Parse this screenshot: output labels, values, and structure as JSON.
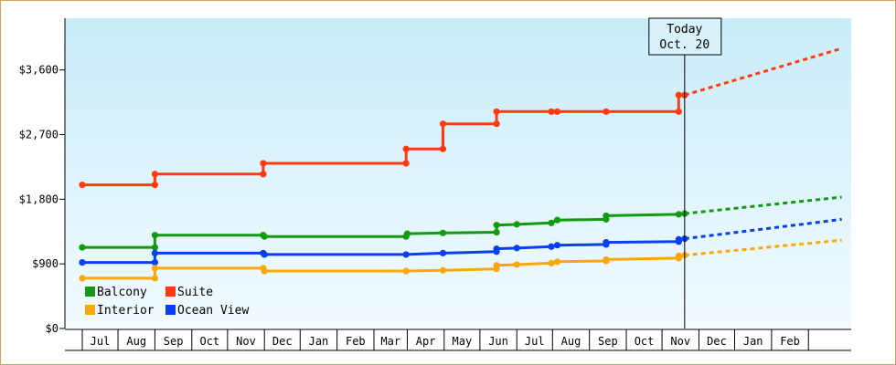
{
  "chart_data": {
    "type": "line",
    "y_axis": {
      "min": 0,
      "max": 4320,
      "ticks": [
        0,
        900,
        1800,
        2700,
        3600
      ],
      "tick_labels": [
        "$0",
        "$900",
        "$1,800",
        "$2,700",
        "$3,600"
      ]
    },
    "x_axis": {
      "months": [
        "Jul",
        "Aug",
        "Sep",
        "Oct",
        "Nov",
        "Dec",
        "Jan",
        "Feb",
        "Mar",
        "Apr",
        "May",
        "Jun",
        "Jul",
        "Aug",
        "Sep",
        "Oct",
        "Nov",
        "Dec",
        "Jan",
        "Feb"
      ],
      "start": "2014-06-01",
      "end": "2016-03-01"
    },
    "today": {
      "date": "2015-10-20",
      "label_line1": "Today",
      "label_line2": "Oct. 20"
    },
    "background": {
      "top": "#c9ecf9",
      "bottom": "#f2fbfe"
    },
    "legend": {
      "position": "bottom-left"
    },
    "series": [
      {
        "name": "Suite",
        "color": "#ff3a10",
        "points": [
          [
            "2014-06-01",
            2000
          ],
          [
            "2014-08-01",
            2000
          ],
          [
            "2014-08-01",
            2150
          ],
          [
            "2014-10-31",
            2150
          ],
          [
            "2014-10-31",
            2300
          ],
          [
            "2015-02-28",
            2300
          ],
          [
            "2015-02-28",
            2500
          ],
          [
            "2015-03-31",
            2500
          ],
          [
            "2015-03-31",
            2850
          ],
          [
            "2015-05-15",
            2850
          ],
          [
            "2015-05-15",
            3020
          ],
          [
            "2015-06-30",
            3020
          ],
          [
            "2015-07-05",
            3020
          ],
          [
            "2015-08-15",
            3020
          ],
          [
            "2015-10-15",
            3020
          ],
          [
            "2015-10-15",
            3250
          ],
          [
            "2015-10-20",
            3250
          ]
        ],
        "forecast": [
          [
            "2015-10-20",
            3250
          ],
          [
            "2016-02-29",
            3900
          ]
        ]
      },
      {
        "name": "Balcony",
        "color": "#129a12",
        "points": [
          [
            "2014-06-01",
            1130
          ],
          [
            "2014-08-01",
            1130
          ],
          [
            "2014-08-01",
            1300
          ],
          [
            "2014-10-31",
            1300
          ],
          [
            "2014-11-01",
            1280
          ],
          [
            "2015-02-28",
            1280
          ],
          [
            "2015-03-01",
            1320
          ],
          [
            "2015-03-31",
            1330
          ],
          [
            "2015-05-15",
            1340
          ],
          [
            "2015-05-15",
            1440
          ],
          [
            "2015-06-01",
            1450
          ],
          [
            "2015-06-30",
            1470
          ],
          [
            "2015-07-05",
            1510
          ],
          [
            "2015-08-15",
            1520
          ],
          [
            "2015-08-15",
            1570
          ],
          [
            "2015-10-15",
            1590
          ],
          [
            "2015-10-20",
            1600
          ]
        ],
        "forecast": [
          [
            "2015-10-20",
            1600
          ],
          [
            "2016-02-29",
            1830
          ]
        ]
      },
      {
        "name": "Ocean View",
        "color": "#0a3ef2",
        "points": [
          [
            "2014-06-01",
            920
          ],
          [
            "2014-08-01",
            920
          ],
          [
            "2014-08-01",
            1050
          ],
          [
            "2014-10-31",
            1050
          ],
          [
            "2014-11-01",
            1030
          ],
          [
            "2015-02-28",
            1030
          ],
          [
            "2015-03-31",
            1050
          ],
          [
            "2015-05-15",
            1070
          ],
          [
            "2015-05-15",
            1110
          ],
          [
            "2015-06-01",
            1120
          ],
          [
            "2015-06-30",
            1140
          ],
          [
            "2015-07-05",
            1160
          ],
          [
            "2015-08-15",
            1170
          ],
          [
            "2015-08-15",
            1200
          ],
          [
            "2015-10-15",
            1210
          ],
          [
            "2015-10-15",
            1240
          ],
          [
            "2015-10-20",
            1250
          ]
        ],
        "forecast": [
          [
            "2015-10-20",
            1250
          ],
          [
            "2016-02-29",
            1520
          ]
        ]
      },
      {
        "name": "Interior",
        "color": "#f9a80a",
        "points": [
          [
            "2014-06-01",
            700
          ],
          [
            "2014-08-01",
            700
          ],
          [
            "2014-08-01",
            840
          ],
          [
            "2014-10-31",
            840
          ],
          [
            "2014-11-01",
            800
          ],
          [
            "2015-02-28",
            800
          ],
          [
            "2015-03-31",
            810
          ],
          [
            "2015-05-15",
            830
          ],
          [
            "2015-05-15",
            880
          ],
          [
            "2015-06-01",
            890
          ],
          [
            "2015-06-30",
            910
          ],
          [
            "2015-07-05",
            930
          ],
          [
            "2015-08-15",
            940
          ],
          [
            "2015-08-15",
            960
          ],
          [
            "2015-10-15",
            980
          ],
          [
            "2015-10-15",
            1010
          ],
          [
            "2015-10-20",
            1020
          ]
        ],
        "forecast": [
          [
            "2015-10-20",
            1020
          ],
          [
            "2016-02-29",
            1230
          ]
        ]
      }
    ],
    "legend_items": [
      {
        "name": "Balcony",
        "color": "#129a12"
      },
      {
        "name": "Suite",
        "color": "#ff3a10"
      },
      {
        "name": "Interior",
        "color": "#f9a80a"
      },
      {
        "name": "Ocean View",
        "color": "#0a3ef2"
      }
    ]
  }
}
